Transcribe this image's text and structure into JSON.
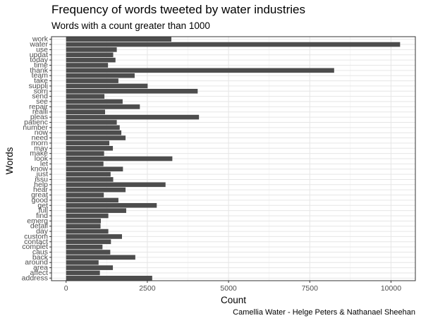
{
  "chart_data": {
    "type": "bar",
    "orientation": "horizontal",
    "title": "Frequency of words tweeted by water industries",
    "subtitle": "Words with a count greater than 1000",
    "caption": "Camellia Water - Helge Peters & Nathanael Sheehan",
    "xlabel": "Count",
    "ylabel": "Words",
    "xlim": [
      -450,
      10750
    ],
    "xticks": [
      0,
      2500,
      5000,
      7500,
      10000
    ],
    "xtick_labels": [
      "0",
      "2500",
      "5000",
      "7500",
      "10000"
    ],
    "grid": true,
    "theme": "bw",
    "bar_color": "#4d4d4d",
    "categories": [
      "work",
      "water",
      "use",
      "updat",
      "today",
      "time",
      "thank",
      "team",
      "take",
      "suppli",
      "sorri",
      "send",
      "see",
      "repair",
      "realli",
      "pleas",
      "patienc",
      "number",
      "now",
      "need",
      "morn",
      "may",
      "make",
      "look",
      "let",
      "know",
      "just",
      "issu",
      "help",
      "hear",
      "great",
      "good",
      "get",
      "full",
      "find",
      "emerg",
      "detail",
      "day",
      "custom",
      "contact",
      "complet",
      "caus",
      "back",
      "around",
      "area",
      "affect",
      "address"
    ],
    "values": [
      3240,
      10280,
      1560,
      1450,
      1520,
      1290,
      8250,
      2110,
      1610,
      2510,
      4050,
      1180,
      1740,
      2270,
      1200,
      4090,
      1560,
      1650,
      1700,
      1830,
      1330,
      1440,
      1170,
      3270,
      1150,
      1750,
      1370,
      1450,
      3060,
      1830,
      1160,
      1610,
      2790,
      1850,
      1300,
      1070,
      1060,
      1300,
      1720,
      1380,
      1120,
      1360,
      2130,
      1000,
      1440,
      1040,
      2650
    ]
  }
}
